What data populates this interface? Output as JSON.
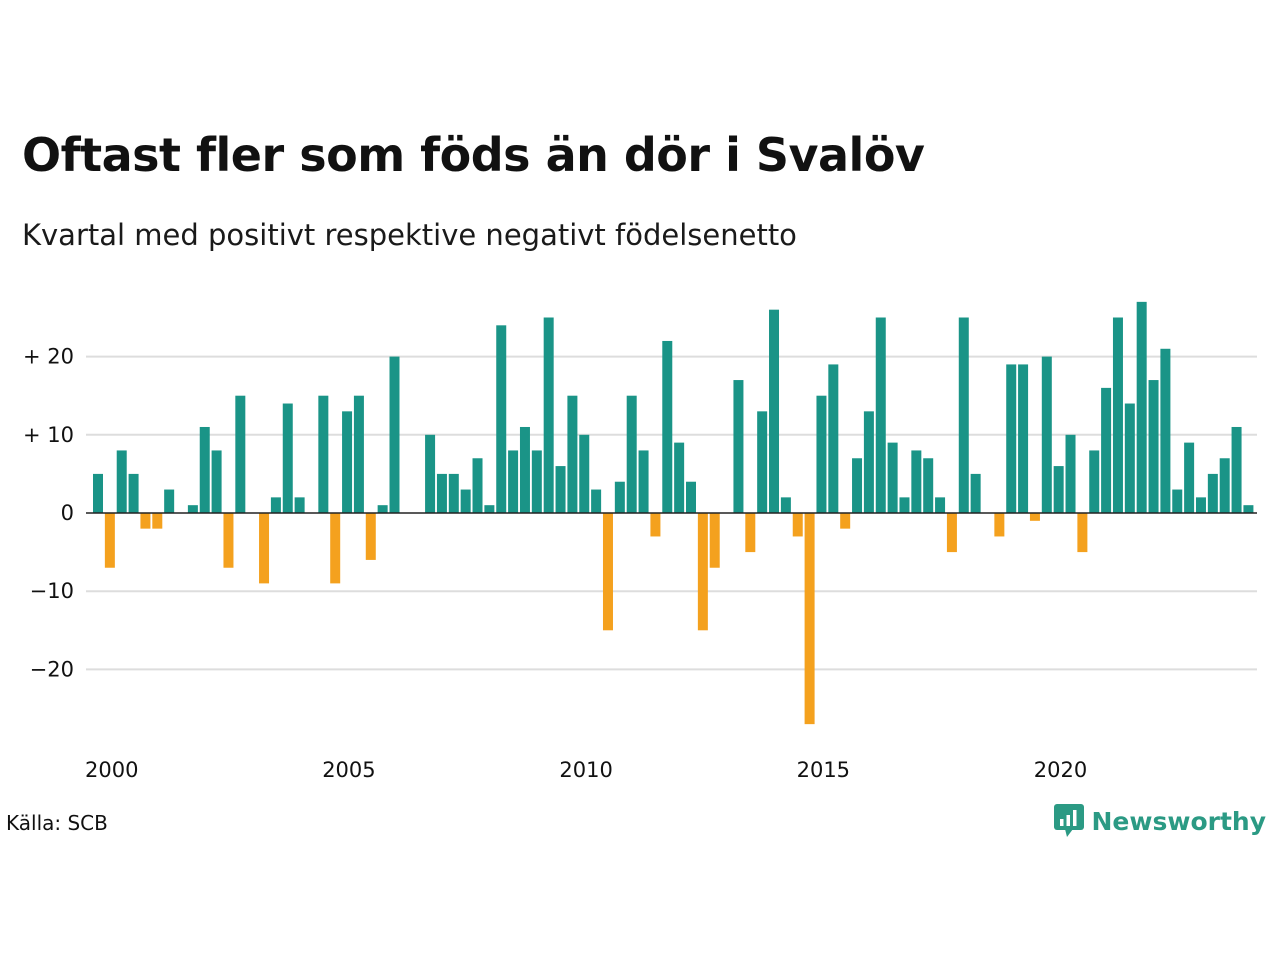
{
  "title": "Oftast fler som föds än dör i Svalöv",
  "subtitle": "Kvartal med positivt respektive negativt födelsenetto",
  "source": "Källa: SCB",
  "brand": {
    "name": "Newsworthy",
    "logo_icon": "newsworthy-chart-bubble-icon"
  },
  "colors": {
    "positive": "#1a9487",
    "negative": "#f4a11e",
    "grid": "#dddddd",
    "baseline": "#222222",
    "brand": "#2b9a84"
  },
  "chart_data": {
    "type": "bar",
    "x_start": "2000 Q1",
    "x_interval": "quarter",
    "x_ticks": [
      "2000",
      "2005",
      "2010",
      "2015",
      "2020"
    ],
    "y_ticks": [
      {
        "value": 20,
        "label": "+ 20"
      },
      {
        "value": 10,
        "label": "+ 10"
      },
      {
        "value": 0,
        "label": "0"
      },
      {
        "value": -10,
        "label": "−10"
      },
      {
        "value": -20,
        "label": "−20"
      }
    ],
    "ylim": [
      -28,
      28
    ],
    "grid": true,
    "values": [
      5,
      -7,
      8,
      5,
      -2,
      -2,
      3,
      0,
      1,
      11,
      8,
      -7,
      15,
      0,
      -9,
      2,
      14,
      2,
      0,
      15,
      -9,
      13,
      15,
      -6,
      1,
      20,
      0,
      0,
      10,
      5,
      5,
      3,
      7,
      1,
      24,
      8,
      11,
      8,
      25,
      6,
      15,
      10,
      3,
      -15,
      4,
      15,
      8,
      -3,
      22,
      9,
      4,
      -15,
      -7,
      0,
      17,
      -5,
      13,
      26,
      2,
      -3,
      -27,
      15,
      19,
      -2,
      7,
      13,
      25,
      9,
      2,
      8,
      7,
      2,
      -5,
      25,
      5,
      0,
      -3,
      19,
      19,
      -1,
      20,
      6,
      10,
      -5,
      8,
      16,
      25,
      14,
      27,
      17,
      21,
      3,
      9,
      2,
      5,
      7,
      11,
      1
    ]
  }
}
